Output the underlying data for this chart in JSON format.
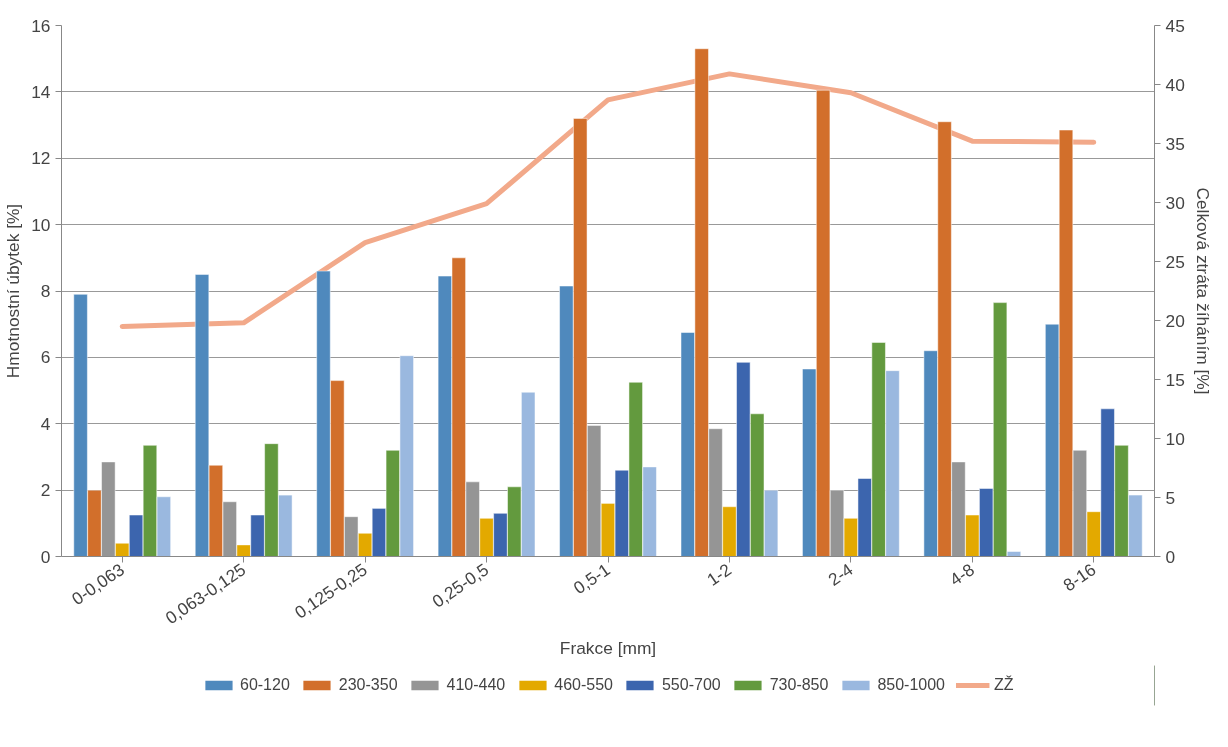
{
  "chart_data": {
    "type": "bar",
    "xlabel": "Frakce [mm]",
    "ylabel": "Hmotnostní úbytek [%]",
    "y2label": "Celková ztráta žíháním [%]",
    "categories": [
      "0-0,063",
      "0,063-0,125",
      "0,125-0,25",
      "0,25-0,5",
      "0,5-1",
      "1-2",
      "2-4",
      "4-8",
      "8-16"
    ],
    "series": [
      {
        "name": "60-120",
        "color": "#4f89bd",
        "values": [
          7.9,
          8.5,
          8.6,
          8.45,
          8.15,
          6.75,
          5.65,
          6.2,
          7.0
        ]
      },
      {
        "name": "230-350",
        "color": "#d26f2b",
        "values": [
          2.0,
          2.75,
          5.3,
          9.0,
          13.2,
          15.3,
          14.05,
          13.1,
          12.85
        ]
      },
      {
        "name": "410-440",
        "color": "#959595",
        "values": [
          2.85,
          1.65,
          1.2,
          2.25,
          3.95,
          3.85,
          2.0,
          2.85,
          3.2
        ]
      },
      {
        "name": "460-550",
        "color": "#e3a900",
        "values": [
          0.4,
          0.35,
          0.7,
          1.15,
          1.6,
          1.5,
          1.15,
          1.25,
          1.35
        ]
      },
      {
        "name": "550-700",
        "color": "#3c65ae",
        "values": [
          1.25,
          1.25,
          1.45,
          1.3,
          2.6,
          5.85,
          2.35,
          2.05,
          4.45
        ]
      },
      {
        "name": "730-850",
        "color": "#639a3e",
        "values": [
          3.35,
          3.4,
          3.2,
          2.1,
          5.25,
          4.3,
          6.45,
          7.65,
          3.35
        ]
      },
      {
        "name": "850-1000",
        "color": "#9ab8df",
        "values": [
          1.8,
          1.85,
          6.05,
          4.95,
          2.7,
          2.0,
          5.6,
          0.15,
          1.85
        ]
      },
      {
        "name": "ZŽ",
        "type": "line",
        "axis": "y2",
        "color": "#f2a98a",
        "values": [
          19.5,
          19.8,
          26.6,
          29.9,
          38.7,
          40.9,
          39.3,
          35.2,
          35.1
        ]
      }
    ],
    "ylim": [
      0,
      16
    ],
    "yticks": [
      0,
      2,
      4,
      6,
      8,
      10,
      12,
      14,
      16
    ],
    "y2lim": [
      0,
      45
    ],
    "y2ticks": [
      0,
      5,
      10,
      15,
      20,
      25,
      30,
      35,
      40,
      45
    ],
    "grid": "y",
    "legend": "bottom"
  }
}
